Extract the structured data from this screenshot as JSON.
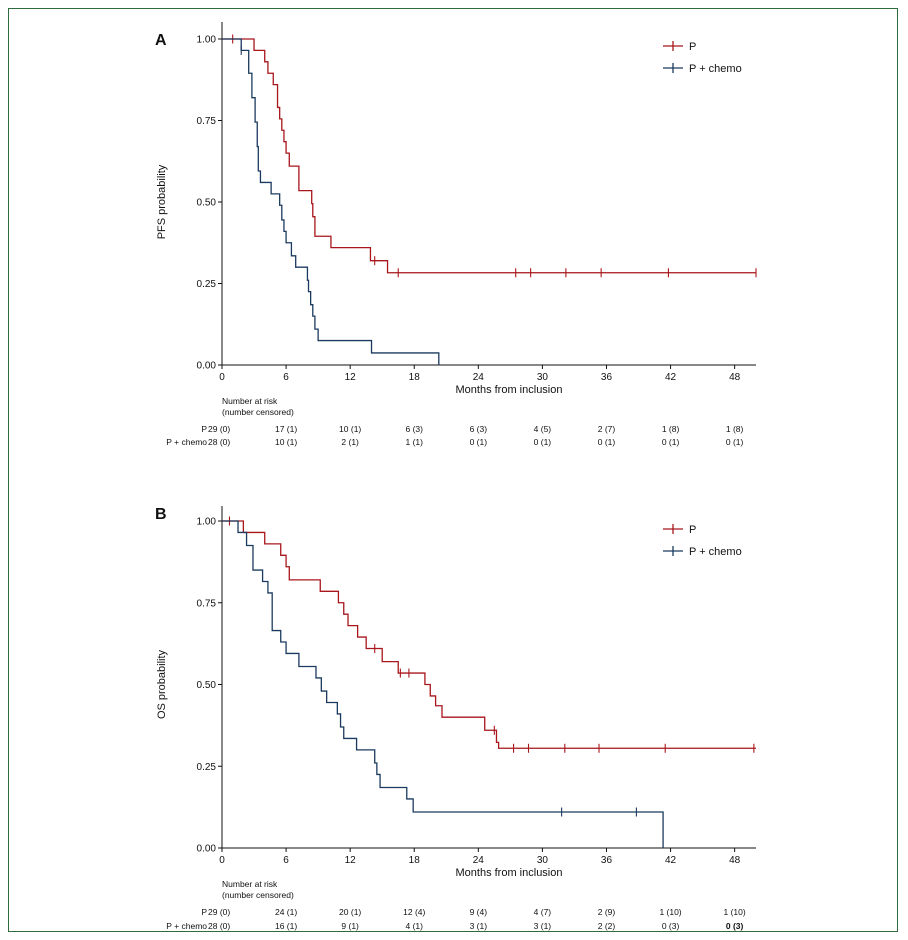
{
  "colors": {
    "P": "#a8161c",
    "P_chemo": "#1b3a5f",
    "axis": "#111111",
    "frame": "#2f6b3c"
  },
  "chart_data": [
    {
      "type": "line",
      "panel_label": "A",
      "ylabel": "PFS probability",
      "xlabel": "Months from inclusion",
      "xlim": [
        0,
        50
      ],
      "ylim": [
        0,
        1
      ],
      "x_ticks": [
        "0",
        "6",
        "12",
        "18",
        "24",
        "30",
        "36",
        "42",
        "48"
      ],
      "y_ticks": [
        "0.00",
        "0.25",
        "0.50",
        "0.75",
        "1.00"
      ],
      "legend": [
        "P",
        "P + chemo"
      ],
      "legend_position": "top-right",
      "series": [
        {
          "name": "P",
          "color_key": "P",
          "steps": [
            [
              0,
              1.0
            ],
            [
              3,
              0.965
            ],
            [
              4,
              0.93
            ],
            [
              4.3,
              0.895
            ],
            [
              4.8,
              0.86
            ],
            [
              5.2,
              0.79
            ],
            [
              5.4,
              0.755
            ],
            [
              5.6,
              0.72
            ],
            [
              5.8,
              0.685
            ],
            [
              6.0,
              0.65
            ],
            [
              6.3,
              0.61
            ],
            [
              7.2,
              0.535
            ],
            [
              8.4,
              0.495
            ],
            [
              8.5,
              0.455
            ],
            [
              8.7,
              0.395
            ],
            [
              10.2,
              0.36
            ],
            [
              13.9,
              0.32
            ],
            [
              15.5,
              0.283
            ],
            [
              50,
              0.283
            ]
          ],
          "censor": [
            [
              1.0,
              1.0
            ],
            [
              14.3,
              0.32
            ],
            [
              16.5,
              0.283
            ],
            [
              27.5,
              0.283
            ],
            [
              28.9,
              0.283
            ],
            [
              32.2,
              0.283
            ],
            [
              35.5,
              0.283
            ],
            [
              41.8,
              0.283
            ],
            [
              50,
              0.283
            ]
          ]
        },
        {
          "name": "P + chemo",
          "color_key": "P_chemo",
          "steps": [
            [
              0,
              1.0
            ],
            [
              1.8,
              0.965
            ],
            [
              2.5,
              0.895
            ],
            [
              2.8,
              0.82
            ],
            [
              3.1,
              0.745
            ],
            [
              3.3,
              0.67
            ],
            [
              3.4,
              0.595
            ],
            [
              3.6,
              0.56
            ],
            [
              4.6,
              0.525
            ],
            [
              5.4,
              0.49
            ],
            [
              5.6,
              0.445
            ],
            [
              5.8,
              0.41
            ],
            [
              6.0,
              0.375
            ],
            [
              6.5,
              0.335
            ],
            [
              6.9,
              0.3
            ],
            [
              8.0,
              0.26
            ],
            [
              8.1,
              0.225
            ],
            [
              8.3,
              0.185
            ],
            [
              8.5,
              0.15
            ],
            [
              8.7,
              0.11
            ],
            [
              9.0,
              0.075
            ],
            [
              14.0,
              0.037
            ],
            [
              20.3,
              0.0
            ]
          ],
          "censor": [
            [
              1.8,
              0.965
            ]
          ]
        }
      ],
      "risk_table": {
        "header": [
          "Number at risk",
          "(number censored)"
        ],
        "rows": [
          {
            "label": "P",
            "values": [
              "29 (0)",
              "17 (1)",
              "10 (1)",
              "6 (3)",
              "6 (3)",
              "4 (5)",
              "2 (7)",
              "1 (8)",
              "1 (8)"
            ]
          },
          {
            "label": "P + chemo",
            "values": [
              "28 (0)",
              "10 (1)",
              "2 (1)",
              "1 (1)",
              "0 (1)",
              "0 (1)",
              "0 (1)",
              "0 (1)",
              "0 (1)"
            ]
          }
        ]
      }
    },
    {
      "type": "line",
      "panel_label": "B",
      "ylabel": "OS probability",
      "xlabel": "Months from inclusion",
      "xlim": [
        0,
        50
      ],
      "ylim": [
        0,
        1
      ],
      "x_ticks": [
        "0",
        "6",
        "12",
        "18",
        "24",
        "30",
        "36",
        "42",
        "48"
      ],
      "y_ticks": [
        "0.00",
        "0.25",
        "0.50",
        "0.75",
        "1.00"
      ],
      "legend": [
        "P",
        "P + chemo"
      ],
      "legend_position": "top-right",
      "series": [
        {
          "name": "P",
          "color_key": "P",
          "steps": [
            [
              0,
              1.0
            ],
            [
              2.0,
              0.965
            ],
            [
              4.0,
              0.93
            ],
            [
              5.5,
              0.895
            ],
            [
              6.0,
              0.86
            ],
            [
              6.3,
              0.82
            ],
            [
              9.2,
              0.785
            ],
            [
              10.9,
              0.75
            ],
            [
              11.4,
              0.715
            ],
            [
              11.8,
              0.68
            ],
            [
              12.7,
              0.645
            ],
            [
              13.5,
              0.61
            ],
            [
              15.0,
              0.57
            ],
            [
              16.5,
              0.535
            ],
            [
              19.0,
              0.5
            ],
            [
              19.5,
              0.465
            ],
            [
              20.0,
              0.435
            ],
            [
              20.6,
              0.4
            ],
            [
              24.6,
              0.36
            ],
            [
              25.7,
              0.323
            ],
            [
              25.9,
              0.305
            ],
            [
              50,
              0.305
            ]
          ],
          "censor": [
            [
              0.7,
              1.0
            ],
            [
              14.3,
              0.61
            ],
            [
              16.7,
              0.535
            ],
            [
              17.5,
              0.535
            ],
            [
              25.5,
              0.36
            ],
            [
              27.3,
              0.305
            ],
            [
              28.7,
              0.305
            ],
            [
              32.1,
              0.305
            ],
            [
              35.3,
              0.305
            ],
            [
              41.5,
              0.305
            ],
            [
              49.8,
              0.305
            ]
          ]
        },
        {
          "name": "P + chemo",
          "color_key": "P_chemo",
          "steps": [
            [
              0,
              1.0
            ],
            [
              1.5,
              0.965
            ],
            [
              2.3,
              0.925
            ],
            [
              2.9,
              0.85
            ],
            [
              3.8,
              0.815
            ],
            [
              4.3,
              0.78
            ],
            [
              4.7,
              0.665
            ],
            [
              5.5,
              0.63
            ],
            [
              6.0,
              0.595
            ],
            [
              7.2,
              0.555
            ],
            [
              8.8,
              0.52
            ],
            [
              9.3,
              0.48
            ],
            [
              9.8,
              0.445
            ],
            [
              10.8,
              0.41
            ],
            [
              11.1,
              0.37
            ],
            [
              11.4,
              0.335
            ],
            [
              12.6,
              0.3
            ],
            [
              14.3,
              0.26
            ],
            [
              14.5,
              0.225
            ],
            [
              14.8,
              0.185
            ],
            [
              17.3,
              0.15
            ],
            [
              17.9,
              0.11
            ],
            [
              41.3,
              0.0
            ]
          ],
          "censor": [
            [
              31.8,
              0.11
            ],
            [
              38.8,
              0.11
            ]
          ]
        }
      ],
      "risk_table": {
        "header": [
          "Number at risk",
          "(number censored)"
        ],
        "rows": [
          {
            "label": "P",
            "values": [
              "29 (0)",
              "24 (1)",
              "20 (1)",
              "12 (4)",
              "9 (4)",
              "4 (7)",
              "2 (9)",
              "1 (10)",
              "1 (10)"
            ]
          },
          {
            "label": "P + chemo",
            "values": [
              "28 (0)",
              "16 (1)",
              "9 (1)",
              "4 (1)",
              "3 (1)",
              "3 (1)",
              "2 (2)",
              "0 (3)",
              "0 (3)"
            ]
          }
        ]
      }
    }
  ]
}
